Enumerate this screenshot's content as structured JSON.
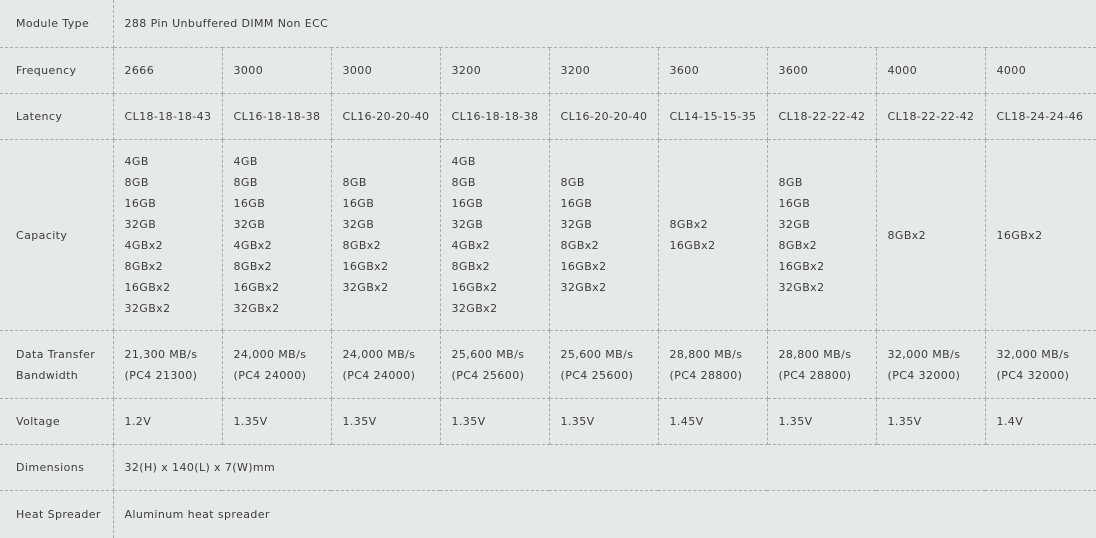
{
  "table": {
    "rows": [
      {
        "label": "Module Type",
        "merged": true,
        "values": [
          "288 Pin Unbuffered DIMM Non ECC"
        ]
      },
      {
        "label": "Frequency",
        "values": [
          "2666",
          "3000",
          "3000",
          "3200",
          "3200",
          "3600",
          "3600",
          "4000",
          "4000"
        ]
      },
      {
        "label": "Latency",
        "values": [
          "CL18-18-18-43",
          "CL16-18-18-38",
          "CL16-20-20-40",
          "CL16-18-18-38",
          "CL16-20-20-40",
          "CL14-15-15-35",
          "CL18-22-22-42",
          "CL18-22-22-42",
          "CL18-24-24-46"
        ]
      },
      {
        "label": "Capacity",
        "values": [
          [
            "4GB",
            "8GB",
            "16GB",
            "32GB",
            "4GBx2",
            "8GBx2",
            "16GBx2",
            "32GBx2"
          ],
          [
            "4GB",
            "8GB",
            "16GB",
            "32GB",
            "4GBx2",
            "8GBx2",
            "16GBx2",
            "32GBx2"
          ],
          [
            "8GB",
            "16GB",
            "32GB",
            "8GBx2",
            "16GBx2",
            "32GBx2"
          ],
          [
            "4GB",
            "8GB",
            "16GB",
            "32GB",
            "4GBx2",
            "8GBx2",
            "16GBx2",
            "32GBx2"
          ],
          [
            "8GB",
            "16GB",
            "32GB",
            "8GBx2",
            "16GBx2",
            "32GBx2"
          ],
          [
            "8GBx2",
            "16GBx2"
          ],
          [
            "8GB",
            "16GB",
            "32GB",
            "8GBx2",
            "16GBx2",
            "32GBx2"
          ],
          [
            "8GBx2"
          ],
          [
            "16GBx2"
          ]
        ]
      },
      {
        "label": [
          "Data Transfer",
          "Bandwidth"
        ],
        "values": [
          [
            "21,300 MB/s",
            "(PC4 21300)"
          ],
          [
            "24,000 MB/s",
            "(PC4 24000)"
          ],
          [
            "24,000 MB/s",
            "(PC4 24000)"
          ],
          [
            "25,600 MB/s",
            "(PC4 25600)"
          ],
          [
            "25,600 MB/s",
            "(PC4 25600)"
          ],
          [
            "28,800 MB/s",
            "(PC4 28800)"
          ],
          [
            "28,800 MB/s",
            "(PC4 28800)"
          ],
          [
            "32,000 MB/s",
            "(PC4 32000)"
          ],
          [
            "32,000 MB/s",
            "(PC4 32000)"
          ]
        ]
      },
      {
        "label": "Voltage",
        "values": [
          "1.2V",
          "1.35V",
          "1.35V",
          "1.35V",
          "1.35V",
          "1.45V",
          "1.35V",
          "1.35V",
          "1.4V"
        ]
      },
      {
        "label": "Dimensions",
        "merged": true,
        "values": [
          "32(H) x 140(L) x 7(W)mm"
        ]
      },
      {
        "label": "Heat Spreader",
        "merged": true,
        "values": [
          "Aluminum heat spreader"
        ]
      }
    ]
  }
}
